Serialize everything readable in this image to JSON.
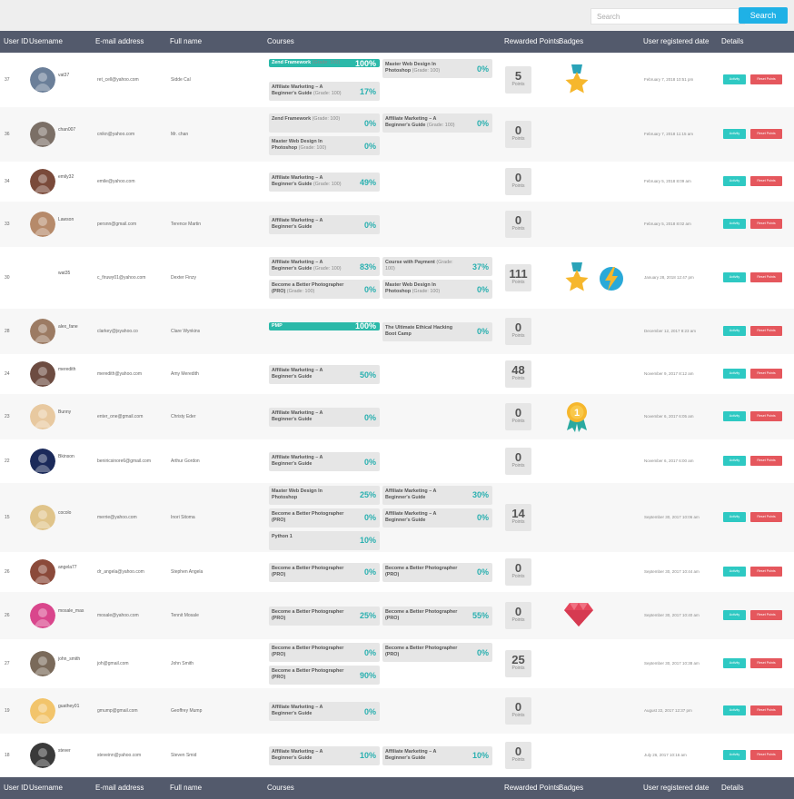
{
  "search": {
    "placeholder": "Search",
    "button": "Search"
  },
  "headers": {
    "user_id": "User ID",
    "username": "Username",
    "email": "E-mail address",
    "full_name": "Full name",
    "courses": "Courses",
    "points": "Rewarded Points",
    "badges": "Badges",
    "registered": "User registered date",
    "details": "Details"
  },
  "labels": {
    "points_unit": "Points",
    "activity": "Activity",
    "reset": "Reset Points"
  },
  "rows": [
    {
      "id": "37",
      "username": "vat37",
      "email": "ret_cell@yahoo.com",
      "full_name": "Sidde Cal",
      "points": "5",
      "date": "February 7, 2018 10:51 pm",
      "badges": [
        "star-medal"
      ],
      "courses": [
        {
          "name": "Zend Framework",
          "grade": "(Grade: 100)",
          "pct": "100%",
          "done": true
        },
        {
          "name": "Master Web Design In Photoshop",
          "grade": "(Grade: 100)",
          "pct": "0%"
        },
        {
          "name": "Affiliate Marketing – A Beginner's Guide",
          "grade": "(Grade: 100)",
          "pct": "17%"
        }
      ]
    },
    {
      "id": "36",
      "username": "chan007",
      "email": "cnikn@yahoo.com",
      "full_name": "Mr. chan",
      "points": "0",
      "date": "February 7, 2018 11:15 am",
      "badges": [],
      "courses": [
        {
          "name": "Zend Framework",
          "grade": "(Grade: 100)",
          "pct": "0%"
        },
        {
          "name": "Affiliate Marketing – A Beginner's Guide",
          "grade": "(Grade: 100)",
          "pct": "0%"
        },
        {
          "name": "Master Web Design In Photoshop",
          "grade": "(Grade: 100)",
          "pct": "0%"
        }
      ]
    },
    {
      "id": "34",
      "username": "emily32",
      "email": "emile@yahoo.com",
      "full_name": "",
      "points": "0",
      "date": "February 5, 2018 8:09 am",
      "badges": [],
      "courses": [
        {
          "name": "Affiliate Marketing – A Beginner's Guide",
          "grade": "(Grade: 100)",
          "pct": "49%"
        }
      ]
    },
    {
      "id": "33",
      "username": "Lawson",
      "email": "persnn@gmail.com",
      "full_name": "Terence Martin",
      "points": "0",
      "date": "February 5, 2018 8:02 am",
      "badges": [],
      "courses": [
        {
          "name": "Affiliate Marketing – A Beginner's Guide",
          "grade": "",
          "pct": "0%"
        }
      ]
    },
    {
      "id": "30",
      "username": "wat35",
      "email": "c_firuwy01@yahoo.com",
      "full_name": "Dexter Finzy",
      "points": "111",
      "date": "January 28, 2018 12:47 pm",
      "badges": [
        "star-medal",
        "lightning-badge"
      ],
      "courses": [
        {
          "name": "Affiliate Marketing – A Beginner's Guide",
          "grade": "(Grade: 100)",
          "pct": "83%"
        },
        {
          "name": "Course with Payment",
          "grade": "(Grade: 100)",
          "pct": "37%"
        },
        {
          "name": "Become a Better Photographer (PRO)",
          "grade": "(Grade: 100)",
          "pct": "0%"
        },
        {
          "name": "Master Web Design In Photoshop",
          "grade": "(Grade: 100)",
          "pct": "0%"
        }
      ]
    },
    {
      "id": "28",
      "username": "alex_fane",
      "email": "clarkey@jsyahoo.co",
      "full_name": "Clare Wynkins",
      "points": "0",
      "date": "December 12, 2017 8:23 am",
      "badges": [],
      "courses": [
        {
          "name": "PMP",
          "grade": "",
          "pct": "100%",
          "done": true
        },
        {
          "name": "The Ultimate Ethical Hacking Boot Camp",
          "grade": "",
          "pct": "0%"
        }
      ]
    },
    {
      "id": "24",
      "username": "meredith",
      "email": "meredith@yahoo.com",
      "full_name": "Amy Meredith",
      "points": "48",
      "date": "November 9, 2017 8:12 am",
      "badges": [],
      "courses": [
        {
          "name": "Affiliate Marketing – A Beginner's Guide",
          "grade": "",
          "pct": "50%"
        }
      ]
    },
    {
      "id": "23",
      "username": "Bunny",
      "email": "enter_one@gmail.com",
      "full_name": "Christy Eder",
      "points": "0",
      "date": "November 6, 2017 6:05 am",
      "badges": [
        "gold-ribbon"
      ],
      "courses": [
        {
          "name": "Affiliate Marketing – A Beginner's Guide",
          "grade": "",
          "pct": "0%"
        }
      ]
    },
    {
      "id": "22",
      "username": "Bkinson",
      "email": "beniricsinore6@gmail.com",
      "full_name": "Arthur Gordon",
      "points": "0",
      "date": "November 6, 2017 6:00 am",
      "badges": [],
      "courses": [
        {
          "name": "Affiliate Marketing – A Beginner's Guide",
          "grade": "",
          "pct": "0%"
        }
      ]
    },
    {
      "id": "15",
      "username": "cocolo",
      "email": "merrie@yahoo.com",
      "full_name": "Inori Sitoma",
      "points": "14",
      "date": "September 30, 2017 10:06 am",
      "badges": [],
      "courses": [
        {
          "name": "Master Web Design In Photoshop",
          "grade": "",
          "pct": "25%"
        },
        {
          "name": "Affiliate Marketing – A Beginner's Guide",
          "grade": "",
          "pct": "30%"
        },
        {
          "name": "Become a Better Photographer (PRO)",
          "grade": "",
          "pct": "0%"
        },
        {
          "name": "Affiliate Marketing – A Beginner's Guide",
          "grade": "",
          "pct": "0%"
        },
        {
          "name": "Python 1",
          "grade": "",
          "pct": "10%"
        }
      ]
    },
    {
      "id": "26",
      "username": "angela77",
      "email": "dr_angela@yahoo.com",
      "full_name": "Stephen Angela",
      "points": "0",
      "date": "September 30, 2017 10:44 am",
      "badges": [],
      "courses": [
        {
          "name": "Become a Better Photographer (PRO)",
          "grade": "",
          "pct": "0%"
        },
        {
          "name": "Become a Better Photographer (PRO)",
          "grade": "",
          "pct": "0%"
        }
      ]
    },
    {
      "id": "26",
      "username": "mosale_mas",
      "email": "mosale@yahoo.com",
      "full_name": "Tennit Mosale",
      "points": "0",
      "date": "September 30, 2017 10:40 am",
      "badges": [
        "ruby-gem"
      ],
      "courses": [
        {
          "name": "Become a Better Photographer (PRO)",
          "grade": "",
          "pct": "25%"
        },
        {
          "name": "Become a Better Photographer (PRO)",
          "grade": "",
          "pct": "55%"
        }
      ]
    },
    {
      "id": "27",
      "username": "john_smith",
      "email": "joh@gmail.com",
      "full_name": "John Smith",
      "points": "25",
      "date": "September 30, 2017 10:38 am",
      "badges": [],
      "courses": [
        {
          "name": "Become a Better Photographer (PRO)",
          "grade": "",
          "pct": "0%"
        },
        {
          "name": "Become a Better Photographer (PRO)",
          "grade": "",
          "pct": "0%"
        },
        {
          "name": "Become a Better Photographer (PRO)",
          "grade": "",
          "pct": "90%"
        }
      ]
    },
    {
      "id": "19",
      "username": "guathey01",
      "email": "gmump@gmail.com",
      "full_name": "Geoffrey Mump",
      "points": "0",
      "date": "August 22, 2017 12:37 pm",
      "badges": [],
      "courses": [
        {
          "name": "Affiliate Marketing – A Beginner's Guide",
          "grade": "",
          "pct": "0%"
        }
      ]
    },
    {
      "id": "18",
      "username": "stever",
      "email": "steveinn@yahoo.com",
      "full_name": "Steven Smid",
      "points": "0",
      "date": "July 26, 2017 10:16 am",
      "badges": [],
      "courses": [
        {
          "name": "Affiliate Marketing – A Beginner's Guide",
          "grade": "",
          "pct": "10%"
        },
        {
          "name": "Affiliate Marketing – A Beginner's Guide",
          "grade": "",
          "pct": "10%"
        }
      ]
    }
  ],
  "colors": {
    "header_bg": "#535a6c",
    "accent": "#2bb9a9",
    "pct": "#2ab0b0",
    "search_btn": "#1fb1e6",
    "activity_btn": "#2ec9c3",
    "reset_btn": "#e5575d"
  }
}
